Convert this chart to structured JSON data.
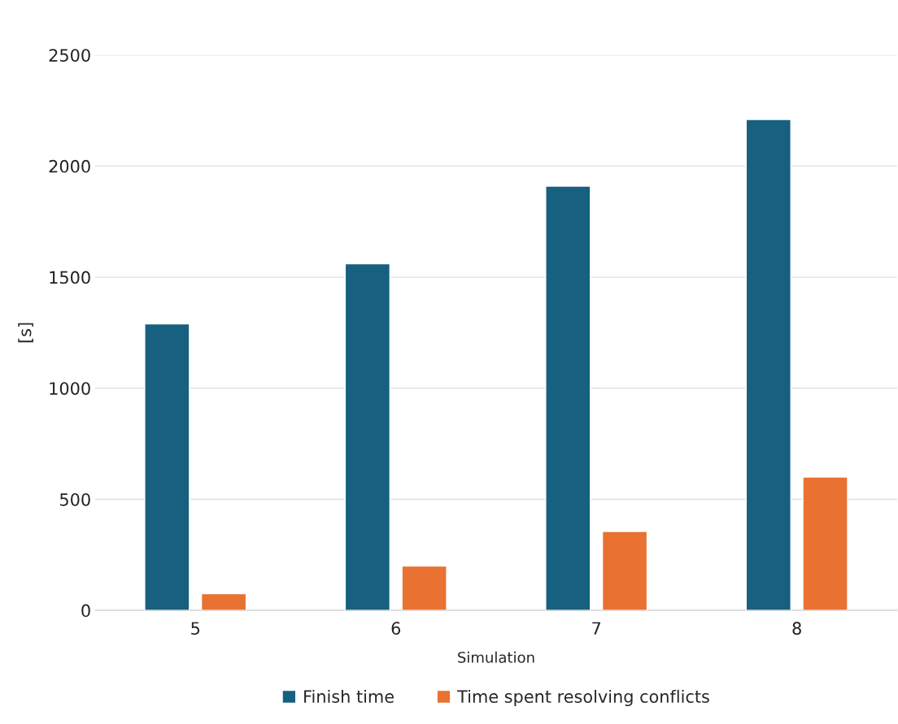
{
  "chart_data": {
    "type": "bar",
    "xlabel": "Simulation",
    "ylabel": "[s]",
    "categories": [
      "5",
      "6",
      "7",
      "8"
    ],
    "series": [
      {
        "name": "Finish time",
        "color": "#17607f",
        "values": [
          1290,
          1560,
          1910,
          2210
        ]
      },
      {
        "name": "Time spent resolving conflicts",
        "color": "#e97132",
        "values": [
          75,
          200,
          355,
          600
        ]
      }
    ],
    "ylim": [
      0,
      2500
    ],
    "yticks": [
      0,
      500,
      1000,
      1500,
      2000,
      2500
    ],
    "grid": "y",
    "legend": "bottom"
  }
}
